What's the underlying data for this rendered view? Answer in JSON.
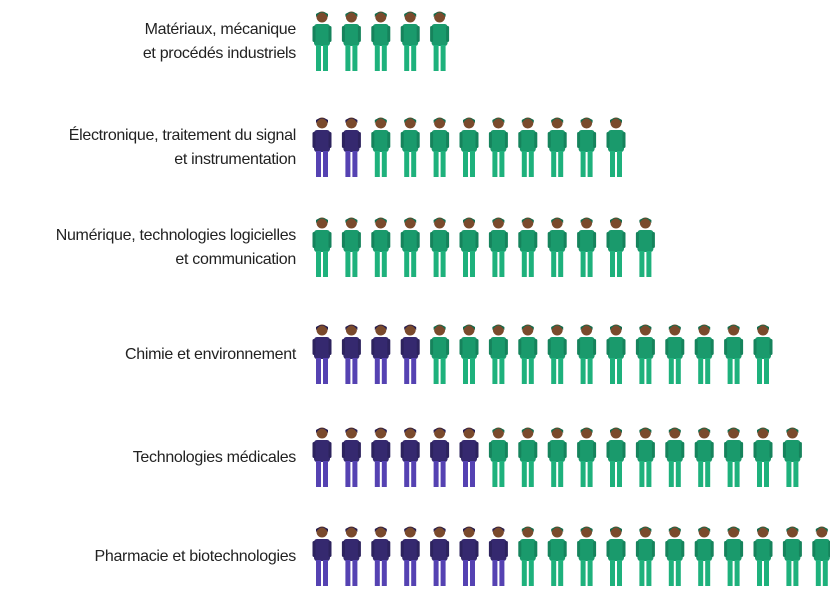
{
  "chart_data": {
    "type": "pictogram",
    "categories": [
      [
        "Matériaux, mécanique",
        "et procédés industriels"
      ],
      [
        "Électronique, traitement du signal",
        "et instrumentation"
      ],
      [
        "Numérique, technologies logicielles",
        "et communication"
      ],
      [
        "Chimie et environnement"
      ],
      [
        "Technologies médicales"
      ],
      [
        "Pharmacie et biotechnologies"
      ]
    ],
    "series": [
      {
        "color": "#35296f",
        "values": [
          0,
          2,
          0,
          4,
          6,
          7
        ]
      },
      {
        "color": "#1a9a6c",
        "values": [
          5,
          9,
          12,
          12,
          11,
          11
        ]
      }
    ]
  }
}
